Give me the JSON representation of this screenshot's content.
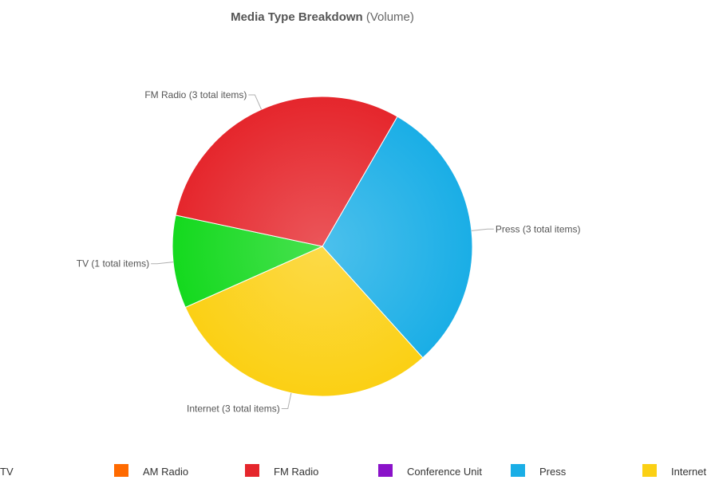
{
  "chart_data": {
    "type": "pie",
    "title": "Media Type Breakdown",
    "subtitle": "(Volume)",
    "unit_suffix": "total items",
    "slices": [
      {
        "name": "Press",
        "value": 3,
        "color": "#1aaee6",
        "label": "Press (3 total items)"
      },
      {
        "name": "Internet",
        "value": 3,
        "color": "#fbd014",
        "label": "Internet (3 total items)"
      },
      {
        "name": "TV",
        "value": 1,
        "color": "#14d91e",
        "label": "TV (1 total items)"
      },
      {
        "name": "FM Radio",
        "value": 3,
        "color": "#e5262c",
        "label": "FM Radio (3 total items)"
      }
    ],
    "legend": [
      {
        "name": "TV",
        "color": "#14d91e"
      },
      {
        "name": "AM Radio",
        "color": "#ff6a00"
      },
      {
        "name": "FM Radio",
        "color": "#e5262c"
      },
      {
        "name": "Conference Unit",
        "color": "#8a12c9"
      },
      {
        "name": "Press",
        "color": "#1aaee6"
      },
      {
        "name": "Internet",
        "color": "#fbd014"
      }
    ],
    "legend_placement": "bottom"
  }
}
